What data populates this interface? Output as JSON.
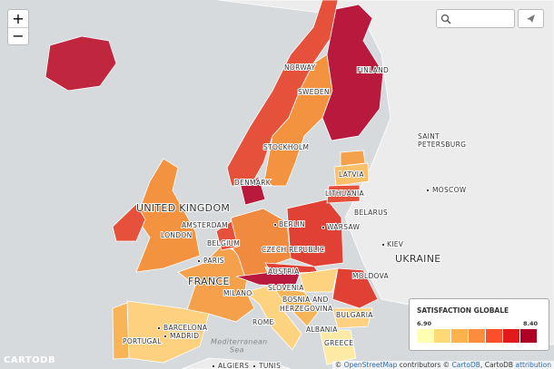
{
  "zoom": {
    "in": "+",
    "out": "−"
  },
  "labels": [
    "NORWAY",
    "FINLAND",
    "SWEDEN",
    "SAINT",
    "PETERSBURG",
    "STOCKHOLM",
    "DENMARK",
    "LATVIA",
    "LITHUANIA",
    "MOSCOW",
    "UNITED KINGDOM",
    "AMSTERDAM",
    "BERLIN",
    "WARSAW",
    "BELARUS",
    "LONDON",
    "BELGIUM",
    "KIEV",
    "PARIS",
    "CZECH REPUBLIC",
    "UKRAINE",
    "FRANCE",
    "AUSTRIA",
    "MOLDOVA",
    "MILANO",
    "SLOVENIA",
    "BOSNIA AND",
    "HERZEGOVINA",
    "BULGARIA",
    "ROME",
    "BARCELONA",
    "MADRID",
    "ALBANIA",
    "PORTUGAL",
    "Mediterranean",
    "Sea",
    "GREECE",
    "ALGIERS",
    "TUNIS"
  ],
  "legend": {
    "title": "SATISFACTION GLOBALE",
    "min": "6.90",
    "max": "8.40",
    "colors": [
      "#ffffb2",
      "#fed976",
      "#feb24c",
      "#fd8d3c",
      "#fc4e2a",
      "#e31a1c",
      "#b10026"
    ]
  },
  "logo": "CARTODB",
  "attribution": [
    "© ",
    "OpenStreetMap",
    " contributors © ",
    "CartoDB",
    ", CartoDB ",
    "attribution"
  ]
}
